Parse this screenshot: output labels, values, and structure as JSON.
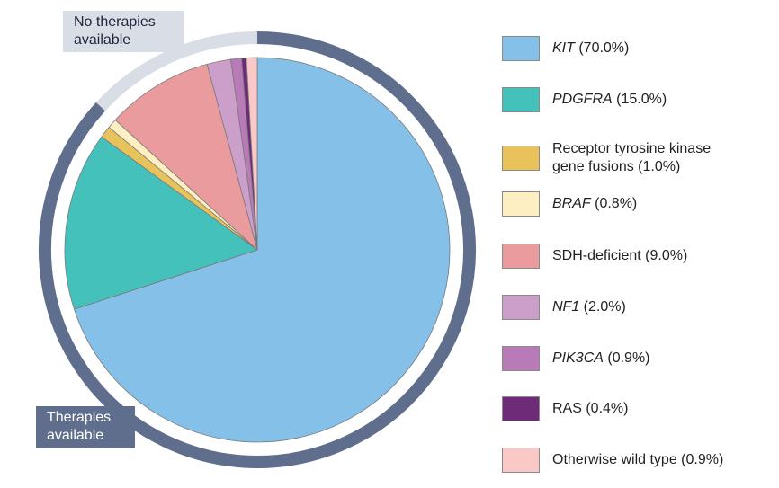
{
  "chart_data": {
    "type": "pie",
    "title": "",
    "slices": [
      {
        "name": "KIT",
        "italic": true,
        "suffix": " (70.0%)",
        "value": 70.0,
        "color": "#85c0e8"
      },
      {
        "name": "PDGFRA",
        "italic": true,
        "suffix": " (15.0%)",
        "value": 15.0,
        "color": "#45c1bc"
      },
      {
        "name": "Receptor tyrosine kinase\ngene fusions",
        "italic": false,
        "suffix": " (1.0%)",
        "value": 1.0,
        "color": "#e8c25a"
      },
      {
        "name": "BRAF",
        "italic": true,
        "suffix": " (0.8%)",
        "value": 0.8,
        "color": "#fdefc1"
      },
      {
        "name": "SDH-deficient",
        "italic": false,
        "suffix": " (9.0%)",
        "value": 9.0,
        "color": "#e99b9d"
      },
      {
        "name": "NF1",
        "italic": true,
        "suffix": " (2.0%)",
        "value": 2.0,
        "color": "#cc9fcb"
      },
      {
        "name": "PIK3CA",
        "italic": true,
        "suffix": " (0.9%)",
        "value": 0.9,
        "color": "#b97ab8"
      },
      {
        "name": "RAS",
        "italic": false,
        "suffix": " (0.4%)",
        "value": 0.4,
        "color": "#6e2c78"
      },
      {
        "name": "Otherwise wild type",
        "italic": false,
        "suffix": " (0.9%)",
        "value": 0.9,
        "color": "#fbc8c8"
      }
    ],
    "ring": [
      {
        "label": "Therapies available",
        "value": 86.8,
        "color": "#5f6e8c"
      },
      {
        "label": "No therapies available",
        "value": 13.2,
        "color": "#d9dde6"
      }
    ],
    "legend_position": "right"
  },
  "annotations": {
    "no_therapies": "No therapies\navailable",
    "therapies": "Therapies\navailable"
  }
}
